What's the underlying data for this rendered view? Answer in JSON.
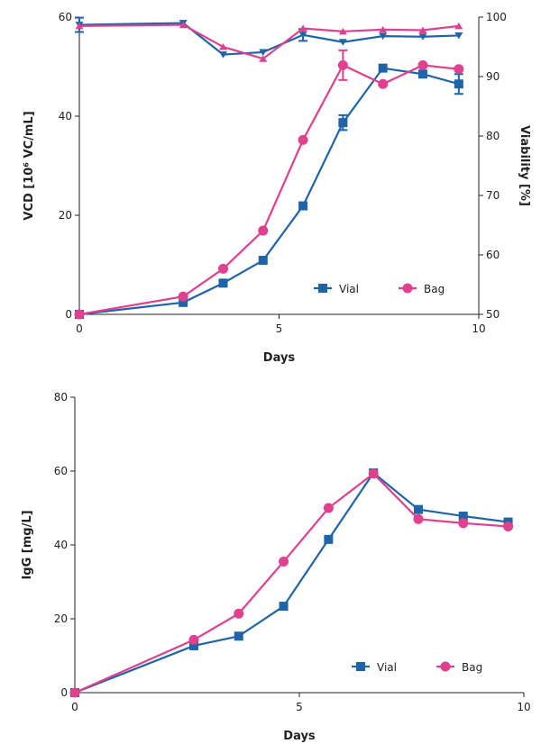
{
  "chart_data": [
    {
      "type": "line",
      "xlabel": "Days",
      "ylabel": "VCD [10⁶ VC/mL]",
      "y2label": "Viability [%]",
      "xlim": [
        0,
        10
      ],
      "ylim": [
        0,
        60
      ],
      "y2lim": [
        50,
        100
      ],
      "xticks": [
        "0",
        "5",
        "10"
      ],
      "yticks": [
        "0",
        "20",
        "40",
        "60"
      ],
      "y2ticks": [
        "50",
        "60",
        "70",
        "80",
        "90",
        "100"
      ],
      "grid": false,
      "legend_position": "bottom-right",
      "x": [
        0,
        2.6,
        3.6,
        4.6,
        5.6,
        6.6,
        7.6,
        8.6,
        9.5
      ],
      "series": [
        {
          "name": "Vial",
          "axis": "left",
          "marker": "square",
          "color": "#1f64a8",
          "values": [
            0,
            2.4,
            6.3,
            10.9,
            21.9,
            38.7,
            49.7,
            48.5,
            46.5
          ],
          "errors": [
            0,
            0,
            0,
            0,
            0,
            1.5,
            0,
            0,
            2
          ]
        },
        {
          "name": "Bag",
          "axis": "left",
          "marker": "circle",
          "color": "#e0408e",
          "values": [
            0,
            3.6,
            9.2,
            16.9,
            35.2,
            50.3,
            46.5,
            50.3,
            49.5
          ],
          "errors": [
            0,
            0,
            0,
            0,
            0,
            3,
            0,
            0,
            0
          ]
        },
        {
          "axis": "right",
          "marker": "triangle-down",
          "color": "#1f64a8",
          "values": [
            98.7,
            99.0,
            93.7,
            94.1,
            97.0,
            95.8,
            96.8,
            96.7,
            96.9
          ],
          "errors": [
            1.2,
            0,
            0,
            0,
            1,
            0,
            0,
            0,
            0
          ]
        },
        {
          "axis": "right",
          "marker": "triangle-up",
          "color": "#e0408e",
          "values": [
            98.5,
            98.7,
            95.0,
            93.0,
            98.1,
            97.6,
            97.9,
            97.8,
            98.5
          ],
          "errors": [
            0,
            0,
            0,
            0,
            0,
            0,
            0,
            0,
            0
          ]
        }
      ]
    },
    {
      "type": "line",
      "xlabel": "Days",
      "ylabel": "IgG [mg/L]",
      "xlim": [
        0,
        10
      ],
      "ylim": [
        0,
        80
      ],
      "xticks": [
        "0",
        "5",
        "10"
      ],
      "yticks": [
        "0",
        "20",
        "40",
        "60",
        "80"
      ],
      "grid": false,
      "legend_position": "bottom-right",
      "x": [
        0,
        2.65,
        3.65,
        4.65,
        5.65,
        6.65,
        7.65,
        8.65,
        9.65
      ],
      "series": [
        {
          "name": "Vial",
          "marker": "square",
          "color": "#1f64a8",
          "values": [
            0,
            12.7,
            15.3,
            23.4,
            41.5,
            59.5,
            49.6,
            47.8,
            46.2
          ]
        },
        {
          "name": "Bag",
          "marker": "circle",
          "color": "#e0408e",
          "values": [
            0,
            14.3,
            21.4,
            35.5,
            50.0,
            59.3,
            47.0,
            45.9,
            45.0
          ]
        }
      ]
    }
  ]
}
